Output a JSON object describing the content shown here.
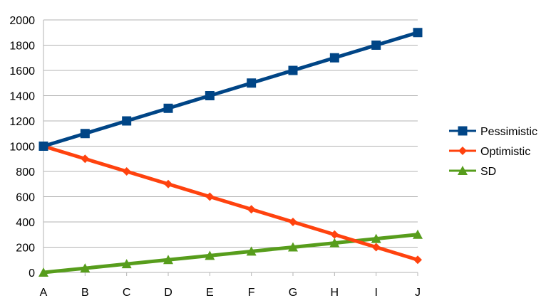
{
  "chart_data": {
    "type": "line",
    "title": "",
    "xlabel": "",
    "ylabel": "",
    "categories": [
      "A",
      "B",
      "C",
      "D",
      "E",
      "F",
      "G",
      "H",
      "I",
      "J"
    ],
    "ylim": [
      0,
      2000
    ],
    "yticks": [
      "0",
      "200",
      "400",
      "600",
      "800",
      "1000",
      "1200",
      "1400",
      "1600",
      "1800",
      "2000"
    ],
    "grid": "horizontal",
    "legend_position": "right",
    "series": [
      {
        "name": "Pessimistic",
        "color": "#004586",
        "marker": "square",
        "values": [
          1000,
          1100,
          1200,
          1300,
          1400,
          1500,
          1600,
          1700,
          1800,
          1900
        ]
      },
      {
        "name": "Optimistic",
        "color": "#ff420e",
        "marker": "diamond",
        "values": [
          1000,
          900,
          800,
          700,
          600,
          500,
          400,
          300,
          200,
          100
        ]
      },
      {
        "name": "SD",
        "color": "#579d1c",
        "marker": "triangle",
        "values": [
          0,
          33.3,
          66.7,
          100,
          133.3,
          166.7,
          200,
          233.3,
          266.7,
          300
        ]
      }
    ]
  }
}
